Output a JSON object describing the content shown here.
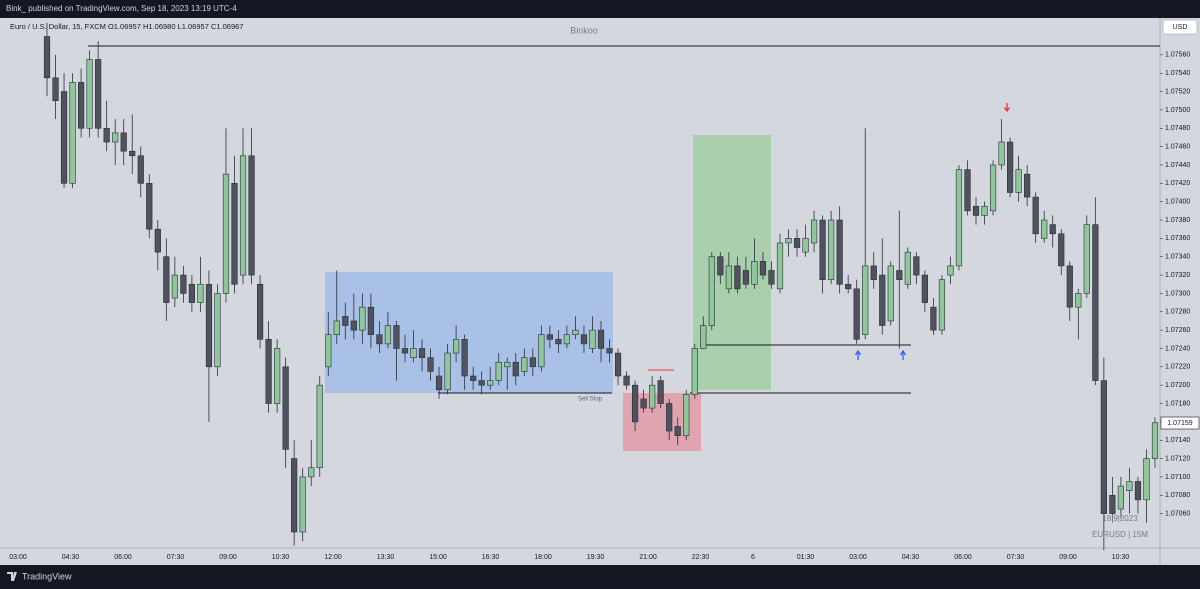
{
  "header": {
    "publisher": "Bink_ published on TradingView.com, Sep 18, 2023 13:19 UTC-4",
    "brand": "TradingView"
  },
  "chart_data": {
    "type": "candlestick",
    "symbol_line": "Euro / U.S. Dollar, 15, FXCM  O1.06957  H1.06980  L1.06957  C1.06967",
    "watermark": "Binkoo",
    "annotations": [
      "Sell Stop",
      "18|9|2023",
      "EURUSD | 15M"
    ],
    "currency": "USD",
    "up_color": "#8fc79a",
    "down_color": "#50535e",
    "ylim": [
      1.07004,
      1.07598
    ],
    "yticks": [
      {
        "value": 1.0706,
        "label": "1.07060"
      },
      {
        "value": 1.0708,
        "label": "1.07080"
      },
      {
        "value": 1.071,
        "label": "1.07100"
      },
      {
        "value": 1.0712,
        "label": "1.07120"
      },
      {
        "value": 1.0714,
        "label": "1.07140"
      },
      {
        "value": 1.0716,
        "label": "1.07160"
      },
      {
        "value": 1.0718,
        "label": "1.07180"
      },
      {
        "value": 1.072,
        "label": "1.07200"
      },
      {
        "value": 1.0722,
        "label": "1.07220"
      },
      {
        "value": 1.0724,
        "label": "1.07240"
      },
      {
        "value": 1.0726,
        "label": "1.07260"
      },
      {
        "value": 1.0728,
        "label": "1.07280"
      },
      {
        "value": 1.073,
        "label": "1.07300"
      },
      {
        "value": 1.0732,
        "label": "1.07320"
      },
      {
        "value": 1.0734,
        "label": "1.07340"
      },
      {
        "value": 1.0736,
        "label": "1.07360"
      },
      {
        "value": 1.0738,
        "label": "1.07380"
      },
      {
        "value": 1.074,
        "label": "1.07400"
      },
      {
        "value": 1.0742,
        "label": "1.07420"
      },
      {
        "value": 1.0744,
        "label": "1.07440"
      },
      {
        "value": 1.0746,
        "label": "1.07460"
      },
      {
        "value": 1.0748,
        "label": "1.07480"
      },
      {
        "value": 1.075,
        "label": "1.07500"
      },
      {
        "value": 1.0752,
        "label": "1.07520"
      },
      {
        "value": 1.0754,
        "label": "1.07540"
      },
      {
        "value": 1.0756,
        "label": "1.07560"
      }
    ],
    "xticks": [
      "03:00",
      "04:30",
      "06:00",
      "07:30",
      "09:00",
      "10:30",
      "12:00",
      "13:30",
      "15:00",
      "16:30",
      "18:00",
      "19:30",
      "21:00",
      "22:30",
      "6",
      "01:30",
      "03:00",
      "04:30",
      "06:00",
      "07:30",
      "09:00",
      "10:30"
    ],
    "candles": [
      [
        1.0758,
        1.07595,
        1.07515,
        1.07535
      ],
      [
        1.07535,
        1.0756,
        1.0749,
        1.0751
      ],
      [
        1.0752,
        1.0754,
        1.07415,
        1.0742
      ],
      [
        1.0742,
        1.0754,
        1.07415,
        1.0753
      ],
      [
        1.0753,
        1.07545,
        1.0747,
        1.0748
      ],
      [
        1.0748,
        1.07565,
        1.0747,
        1.07555
      ],
      [
        1.07555,
        1.07575,
        1.0747,
        1.0748
      ],
      [
        1.0748,
        1.0751,
        1.07455,
        1.07465
      ],
      [
        1.07465,
        1.0749,
        1.0744,
        1.07475
      ],
      [
        1.07475,
        1.0749,
        1.0744,
        1.07455
      ],
      [
        1.07455,
        1.07495,
        1.0743,
        1.0745
      ],
      [
        1.0745,
        1.0746,
        1.07405,
        1.0742
      ],
      [
        1.0742,
        1.0743,
        1.0736,
        1.0737
      ],
      [
        1.0737,
        1.0738,
        1.07325,
        1.07345
      ],
      [
        1.0734,
        1.0736,
        1.0727,
        1.0729
      ],
      [
        1.07295,
        1.0734,
        1.07285,
        1.0732
      ],
      [
        1.0732,
        1.0733,
        1.0729,
        1.073
      ],
      [
        1.0731,
        1.0732,
        1.0728,
        1.0729
      ],
      [
        1.0729,
        1.0734,
        1.0728,
        1.0731
      ],
      [
        1.0731,
        1.07325,
        1.0716,
        1.0722
      ],
      [
        1.0722,
        1.0731,
        1.0721,
        1.073
      ],
      [
        1.073,
        1.0748,
        1.0729,
        1.0743
      ],
      [
        1.0742,
        1.0745,
        1.073,
        1.0731
      ],
      [
        1.0732,
        1.0748,
        1.0731,
        1.0745
      ],
      [
        1.0745,
        1.0748,
        1.0731,
        1.0732
      ],
      [
        1.0731,
        1.0732,
        1.0724,
        1.0725
      ],
      [
        1.0725,
        1.0727,
        1.0717,
        1.0718
      ],
      [
        1.0718,
        1.0725,
        1.0717,
        1.0724
      ],
      [
        1.0722,
        1.0723,
        1.0711,
        1.0713
      ],
      [
        1.0712,
        1.0714,
        1.07025,
        1.0704
      ],
      [
        1.0704,
        1.0711,
        1.0703,
        1.071
      ],
      [
        1.071,
        1.0714,
        1.0709,
        1.0711
      ],
      [
        1.0711,
        1.0721,
        1.071,
        1.072
      ],
      [
        1.0722,
        1.0728,
        1.0721,
        1.07255
      ],
      [
        1.07255,
        1.07325,
        1.07245,
        1.0727
      ],
      [
        1.07275,
        1.0729,
        1.0725,
        1.07265
      ],
      [
        1.0727,
        1.073,
        1.0725,
        1.0726
      ],
      [
        1.0726,
        1.073,
        1.07245,
        1.07285
      ],
      [
        1.07285,
        1.073,
        1.0724,
        1.07255
      ],
      [
        1.07255,
        1.0727,
        1.07235,
        1.07245
      ],
      [
        1.07245,
        1.0728,
        1.0724,
        1.07265
      ],
      [
        1.07265,
        1.0727,
        1.07205,
        1.0724
      ],
      [
        1.0724,
        1.07255,
        1.07225,
        1.07235
      ],
      [
        1.0723,
        1.0726,
        1.07225,
        1.0724
      ],
      [
        1.0724,
        1.0725,
        1.07215,
        1.0723
      ],
      [
        1.0723,
        1.0724,
        1.07205,
        1.07215
      ],
      [
        1.0721,
        1.0722,
        1.07185,
        1.07195
      ],
      [
        1.07195,
        1.07245,
        1.0719,
        1.07235
      ],
      [
        1.07235,
        1.07265,
        1.07225,
        1.0725
      ],
      [
        1.0725,
        1.07255,
        1.07195,
        1.0721
      ],
      [
        1.0721,
        1.0722,
        1.07195,
        1.07205
      ],
      [
        1.07205,
        1.07215,
        1.0719,
        1.072
      ],
      [
        1.072,
        1.0722,
        1.07195,
        1.07205
      ],
      [
        1.07205,
        1.07235,
        1.072,
        1.07225
      ],
      [
        1.0722,
        1.0723,
        1.07195,
        1.07225
      ],
      [
        1.07225,
        1.07235,
        1.072,
        1.0721
      ],
      [
        1.07215,
        1.0724,
        1.0721,
        1.0723
      ],
      [
        1.0723,
        1.0724,
        1.0721,
        1.0722
      ],
      [
        1.0722,
        1.07265,
        1.07215,
        1.07255
      ],
      [
        1.07255,
        1.07265,
        1.0724,
        1.0725
      ],
      [
        1.0725,
        1.0726,
        1.07235,
        1.07245
      ],
      [
        1.07245,
        1.07265,
        1.0724,
        1.07255
      ],
      [
        1.07255,
        1.07275,
        1.0725,
        1.0726
      ],
      [
        1.07255,
        1.07265,
        1.07235,
        1.07245
      ],
      [
        1.0724,
        1.07275,
        1.07235,
        1.0726
      ],
      [
        1.0726,
        1.0727,
        1.07225,
        1.0724
      ],
      [
        1.0724,
        1.0725,
        1.07225,
        1.07235
      ],
      [
        1.07235,
        1.0724,
        1.072,
        1.0721
      ],
      [
        1.0721,
        1.07215,
        1.07195,
        1.072
      ],
      [
        1.072,
        1.07205,
        1.0715,
        1.0716
      ],
      [
        1.07185,
        1.07195,
        1.0717,
        1.07175
      ],
      [
        1.07175,
        1.0721,
        1.0717,
        1.072
      ],
      [
        1.07205,
        1.0721,
        1.07175,
        1.0718
      ],
      [
        1.0718,
        1.07185,
        1.0714,
        1.0715
      ],
      [
        1.07155,
        1.07165,
        1.07135,
        1.07145
      ],
      [
        1.07145,
        1.07195,
        1.0714,
        1.0719
      ],
      [
        1.0719,
        1.07245,
        1.07185,
        1.0724
      ],
      [
        1.0724,
        1.07275,
        1.0724,
        1.07265
      ],
      [
        1.07265,
        1.07345,
        1.0726,
        1.0734
      ],
      [
        1.0734,
        1.07345,
        1.0731,
        1.0732
      ],
      [
        1.07305,
        1.07345,
        1.073,
        1.0733
      ],
      [
        1.0733,
        1.0734,
        1.073,
        1.07305
      ],
      [
        1.07325,
        1.0734,
        1.07305,
        1.0731
      ],
      [
        1.0731,
        1.0736,
        1.07305,
        1.07335
      ],
      [
        1.07335,
        1.07345,
        1.07315,
        1.0732
      ],
      [
        1.07325,
        1.07335,
        1.07305,
        1.0731
      ],
      [
        1.07305,
        1.07365,
        1.073,
        1.07355
      ],
      [
        1.07355,
        1.0737,
        1.0734,
        1.0736
      ],
      [
        1.0736,
        1.0737,
        1.0734,
        1.0735
      ],
      [
        1.07345,
        1.07375,
        1.0734,
        1.0736
      ],
      [
        1.07355,
        1.0739,
        1.07345,
        1.0738
      ],
      [
        1.0738,
        1.07385,
        1.073,
        1.07315
      ],
      [
        1.07315,
        1.0739,
        1.0731,
        1.0738
      ],
      [
        1.0738,
        1.07395,
        1.073,
        1.0731
      ],
      [
        1.0731,
        1.0732,
        1.073,
        1.07305
      ],
      [
        1.07305,
        1.07315,
        1.07245,
        1.0725
      ],
      [
        1.07255,
        1.0748,
        1.0725,
        1.0733
      ],
      [
        1.0733,
        1.07345,
        1.07305,
        1.07315
      ],
      [
        1.0732,
        1.0736,
        1.07255,
        1.07265
      ],
      [
        1.0727,
        1.07335,
        1.07265,
        1.0733
      ],
      [
        1.07325,
        1.0739,
        1.0724,
        1.07315
      ],
      [
        1.0731,
        1.0735,
        1.07305,
        1.07345
      ],
      [
        1.0734,
        1.07345,
        1.0731,
        1.0732
      ],
      [
        1.0732,
        1.07325,
        1.0728,
        1.0729
      ],
      [
        1.07285,
        1.07295,
        1.07255,
        1.0726
      ],
      [
        1.0726,
        1.0732,
        1.07255,
        1.07315
      ],
      [
        1.0732,
        1.0734,
        1.0731,
        1.0733
      ],
      [
        1.0733,
        1.0744,
        1.07325,
        1.07435
      ],
      [
        1.07435,
        1.07445,
        1.07385,
        1.0739
      ],
      [
        1.07395,
        1.07405,
        1.07375,
        1.07385
      ],
      [
        1.07385,
        1.074,
        1.07375,
        1.07395
      ],
      [
        1.0739,
        1.07445,
        1.07385,
        1.0744
      ],
      [
        1.0744,
        1.0749,
        1.07435,
        1.07465
      ],
      [
        1.07465,
        1.0747,
        1.07405,
        1.0741
      ],
      [
        1.0741,
        1.0745,
        1.074,
        1.07435
      ],
      [
        1.0743,
        1.0744,
        1.07395,
        1.07405
      ],
      [
        1.07405,
        1.0741,
        1.07355,
        1.07365
      ],
      [
        1.0736,
        1.0739,
        1.07355,
        1.0738
      ],
      [
        1.07375,
        1.07385,
        1.0735,
        1.07365
      ],
      [
        1.07365,
        1.0737,
        1.0732,
        1.0733
      ],
      [
        1.0733,
        1.07335,
        1.0727,
        1.07285
      ],
      [
        1.07285,
        1.07305,
        1.0725,
        1.073
      ],
      [
        1.073,
        1.07385,
        1.07295,
        1.07375
      ],
      [
        1.07375,
        1.07405,
        1.072,
        1.07205
      ],
      [
        1.07205,
        1.0723,
        1.0702,
        1.0706
      ],
      [
        1.0708,
        1.071,
        1.0705,
        1.0706
      ],
      [
        1.07065,
        1.071,
        1.07055,
        1.0709
      ],
      [
        1.07085,
        1.0711,
        1.0706,
        1.07095
      ],
      [
        1.07095,
        1.071,
        1.0706,
        1.07075
      ],
      [
        1.07075,
        1.0713,
        1.0705,
        1.0712
      ],
      [
        1.0712,
        1.07165,
        1.0711,
        1.07159
      ]
    ]
  }
}
